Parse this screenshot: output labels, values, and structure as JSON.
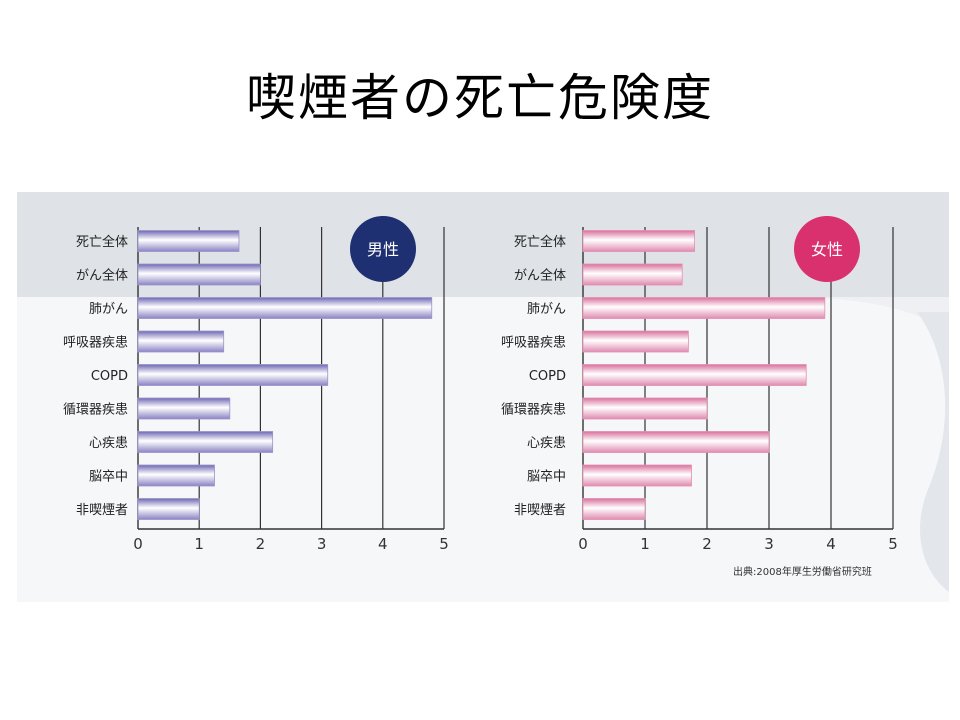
{
  "title": "喫煙者の死亡危険度",
  "source_note": "出典:2008年厚生労働省研究班",
  "chart_data": [
    {
      "type": "bar",
      "orientation": "horizontal",
      "badge": "男性",
      "categories": [
        "死亡全体",
        "がん全体",
        "肺がん",
        "呼吸器疾患",
        "COPD",
        "循環器疾患",
        "心疾患",
        "脳卒中",
        "非喫煙者"
      ],
      "values": [
        1.65,
        2.0,
        4.8,
        1.4,
        3.1,
        1.5,
        2.2,
        1.25,
        1.0
      ],
      "xlim": [
        0,
        5
      ],
      "xticks": [
        "0",
        "1",
        "2",
        "3",
        "4",
        "5"
      ],
      "grid": true,
      "colors": {
        "bar": "#9a94cc",
        "badge": "#1e2f72"
      }
    },
    {
      "type": "bar",
      "orientation": "horizontal",
      "badge": "女性",
      "categories": [
        "死亡全体",
        "がん全体",
        "肺がん",
        "呼吸器疾患",
        "COPD",
        "循環器疾患",
        "心疾患",
        "脳卒中",
        "非喫煙者"
      ],
      "values": [
        1.8,
        1.6,
        3.9,
        1.7,
        3.6,
        2.0,
        3.0,
        1.75,
        1.0
      ],
      "xlim": [
        0,
        5
      ],
      "xticks": [
        "0",
        "1",
        "2",
        "3",
        "4",
        "5"
      ],
      "grid": true,
      "colors": {
        "bar": "#e48fb2",
        "badge": "#d9306e"
      }
    }
  ]
}
